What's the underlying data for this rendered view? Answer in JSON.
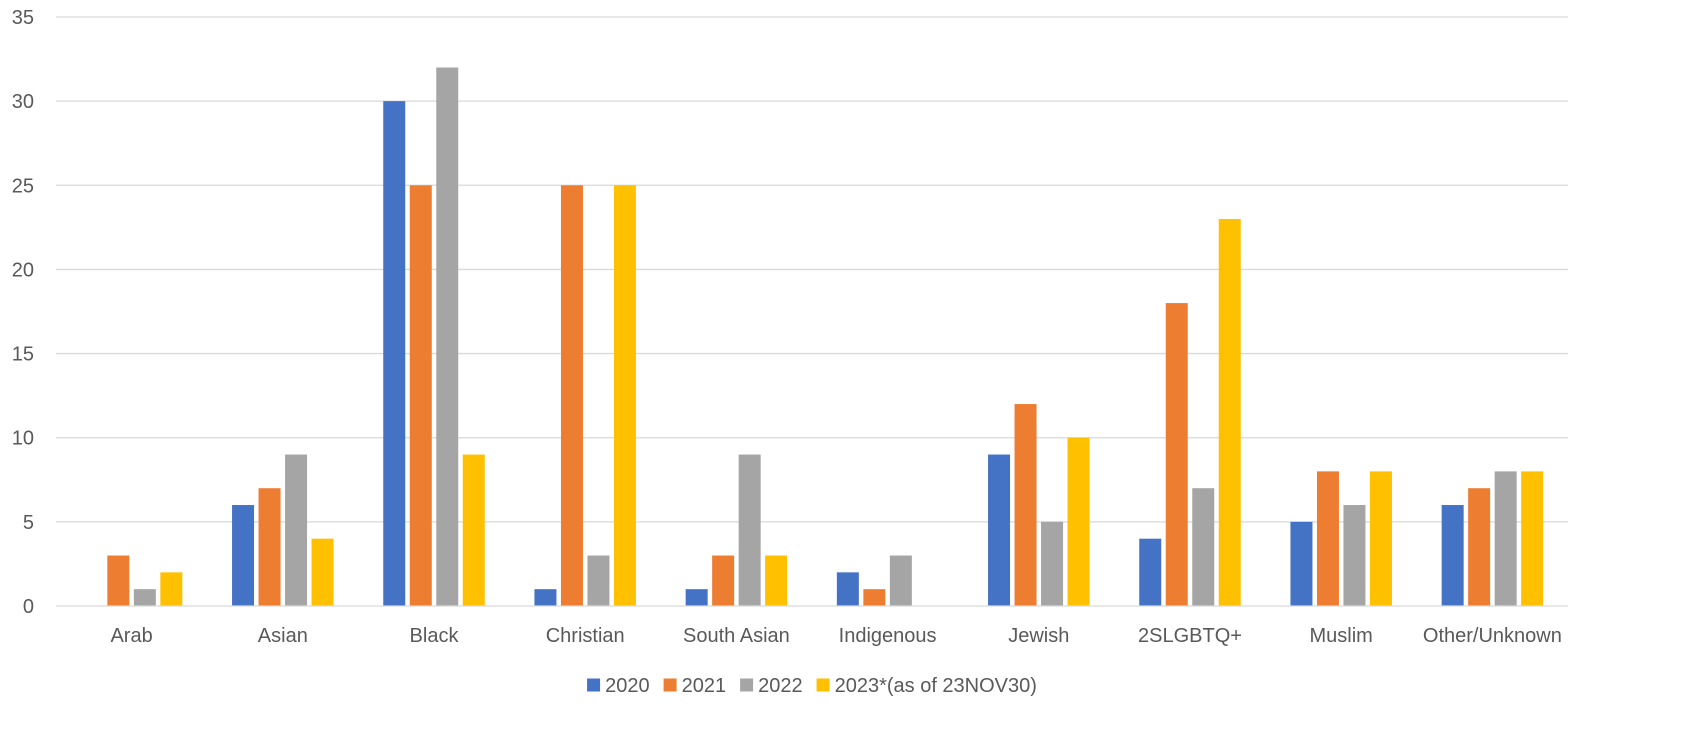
{
  "chart_data": {
    "type": "bar",
    "categories": [
      "Arab",
      "Asian",
      "Black",
      "Christian",
      "South Asian",
      "Indigenous",
      "Jewish",
      "2SLGBTQ+",
      "Muslim",
      "Other/Unknown"
    ],
    "series": [
      {
        "name": "2020",
        "color": "#4472C4",
        "values": [
          0,
          6,
          30,
          1,
          1,
          2,
          9,
          4,
          5,
          6
        ]
      },
      {
        "name": "2021",
        "color": "#ED7D31",
        "values": [
          3,
          7,
          25,
          25,
          3,
          1,
          12,
          18,
          8,
          7
        ]
      },
      {
        "name": "2022",
        "color": "#A5A5A5",
        "values": [
          1,
          9,
          32,
          3,
          9,
          3,
          5,
          7,
          6,
          8
        ]
      },
      {
        "name": "2023*(as of 23NOV30)",
        "color": "#FFC000",
        "values": [
          2,
          4,
          9,
          25,
          3,
          0,
          10,
          23,
          8,
          8
        ]
      }
    ],
    "ylim": [
      0,
      35
    ],
    "yticks": [
      0,
      5,
      10,
      15,
      20,
      25,
      30,
      35
    ],
    "grid": true,
    "legend": "bottom"
  }
}
